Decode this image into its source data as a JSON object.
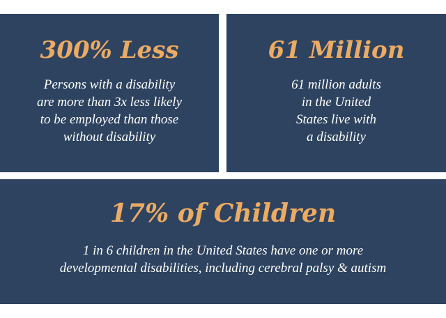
{
  "stats": [
    {
      "headline": "300% Less",
      "lines": [
        "Persons with a disability",
        "are more than 3x less likely",
        "to be employed than those",
        "without disability"
      ]
    },
    {
      "headline": "61 Million",
      "lines": [
        "61 million adults",
        "in the United",
        "States live with",
        "a disability"
      ]
    },
    {
      "headline": "17% of Children",
      "lines": [
        "1 in 6 children in the United States have one or more",
        "developmental disabilities, including cerebral palsy & autism"
      ]
    }
  ],
  "colors": {
    "panel_background": "#2e4360",
    "headline": "#ecab63",
    "body_text": "#ffffff"
  }
}
